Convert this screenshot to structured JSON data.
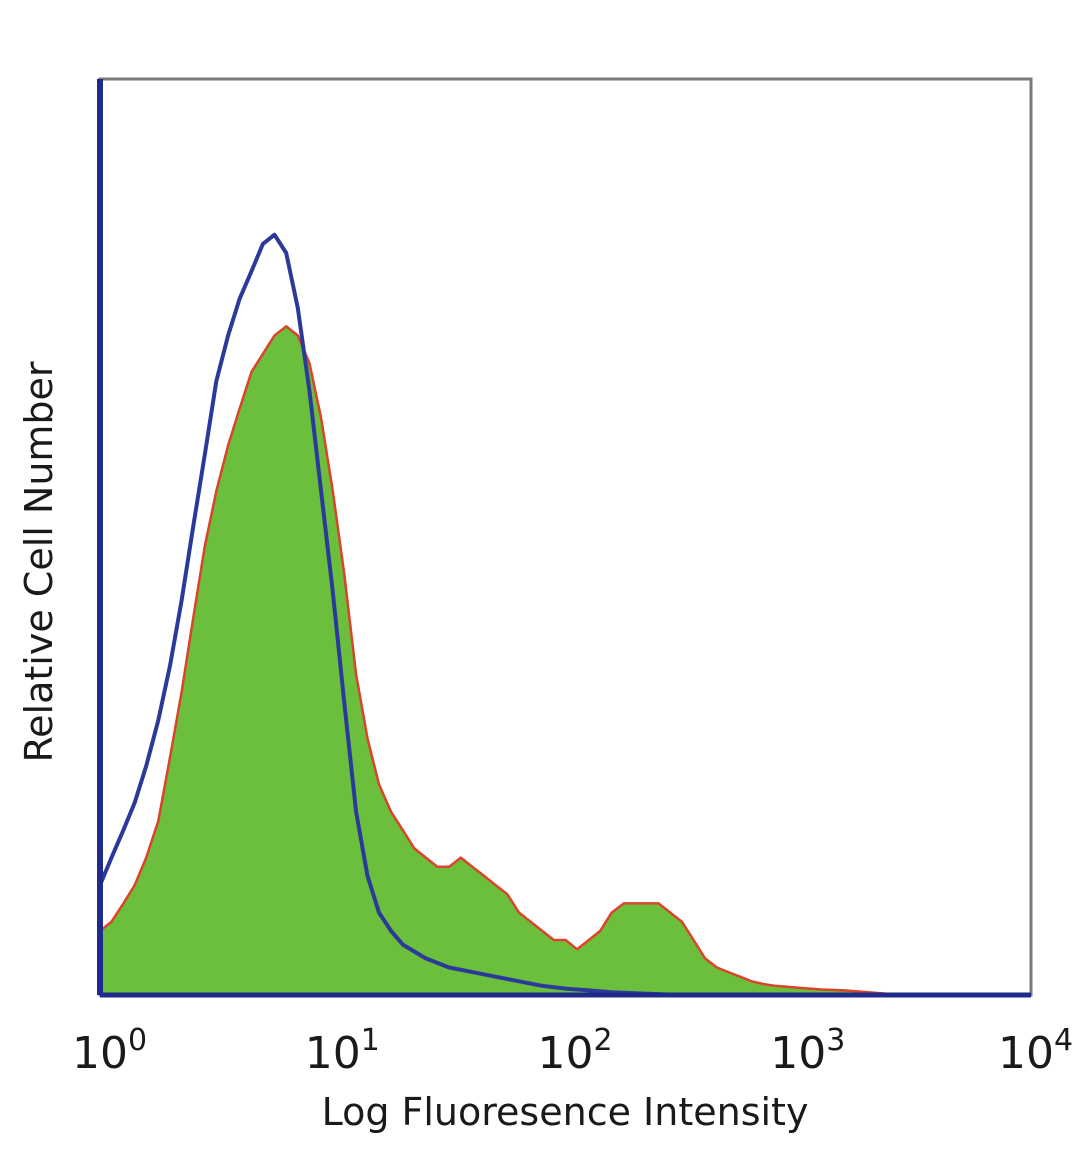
{
  "chart_data": {
    "type": "area",
    "title": "",
    "xlabel": "Log Fluoresence Intensity",
    "ylabel": "Relative Cell Number",
    "x_scale": "log",
    "xlim": [
      1,
      10000
    ],
    "ylim": [
      0,
      100
    ],
    "x_ticks": [
      {
        "base": "10",
        "exp": "0"
      },
      {
        "base": "10",
        "exp": "1"
      },
      {
        "base": "10",
        "exp": "2"
      },
      {
        "base": "10",
        "exp": "3"
      },
      {
        "base": "10",
        "exp": "4"
      }
    ],
    "legend": "none",
    "grid": false,
    "series": [
      {
        "style": "filled",
        "fill_color": "#6cbf3c",
        "line_color": "#d9442b",
        "x": [
          1.0,
          1.12,
          1.26,
          1.41,
          1.58,
          1.78,
          2.0,
          2.24,
          2.51,
          2.82,
          3.16,
          3.55,
          3.98,
          4.47,
          5.01,
          5.62,
          6.31,
          7.08,
          7.94,
          8.91,
          10.0,
          11.2,
          12.6,
          14.1,
          15.8,
          17.8,
          20.0,
          22.4,
          25.1,
          28.2,
          31.6,
          35.5,
          39.8,
          44.7,
          50.1,
          56.2,
          63.1,
          70.8,
          79.4,
          89.1,
          100,
          112,
          126,
          141,
          158,
          178,
          200,
          224,
          251,
          282,
          316,
          355,
          398,
          447,
          501,
          562,
          631,
          708,
          794,
          891,
          1000,
          1260,
          1580,
          2000,
          2500
        ],
        "y": [
          7,
          8,
          10,
          12,
          15,
          19,
          26,
          33,
          41,
          49,
          55,
          60,
          64,
          68,
          70,
          72,
          73,
          72,
          69,
          63,
          55,
          46,
          35,
          28,
          23,
          20,
          18,
          16,
          15,
          14,
          14,
          15,
          14,
          13,
          12,
          11,
          9,
          8,
          7,
          6,
          6,
          5,
          6,
          7,
          9,
          10,
          10,
          10,
          10,
          9,
          8,
          6,
          4,
          3,
          2.5,
          2,
          1.5,
          1.2,
          1.0,
          0.9,
          0.8,
          0.6,
          0.5,
          0.3,
          0.1
        ]
      },
      {
        "style": "line",
        "line_color": "#2b3a9a",
        "x": [
          1.0,
          1.12,
          1.26,
          1.41,
          1.58,
          1.78,
          2.0,
          2.24,
          2.51,
          2.82,
          3.16,
          3.55,
          3.98,
          4.47,
          5.01,
          5.62,
          6.31,
          7.08,
          7.94,
          8.91,
          10.0,
          11.2,
          12.6,
          14.1,
          15.8,
          17.8,
          20.0,
          25.1,
          31.6,
          39.8,
          50.1,
          63.1,
          79.4,
          100,
          126,
          158,
          200,
          251,
          316
        ],
        "y": [
          12,
          15,
          18,
          21,
          25,
          30,
          36,
          43,
          51,
          59,
          67,
          72,
          76,
          79,
          82,
          83,
          81,
          75,
          66,
          55,
          44,
          32,
          20,
          13,
          9,
          7,
          5.5,
          4,
          3,
          2.5,
          2,
          1.5,
          1,
          0.7,
          0.5,
          0.3,
          0.2,
          0.1,
          0
        ]
      }
    ]
  }
}
